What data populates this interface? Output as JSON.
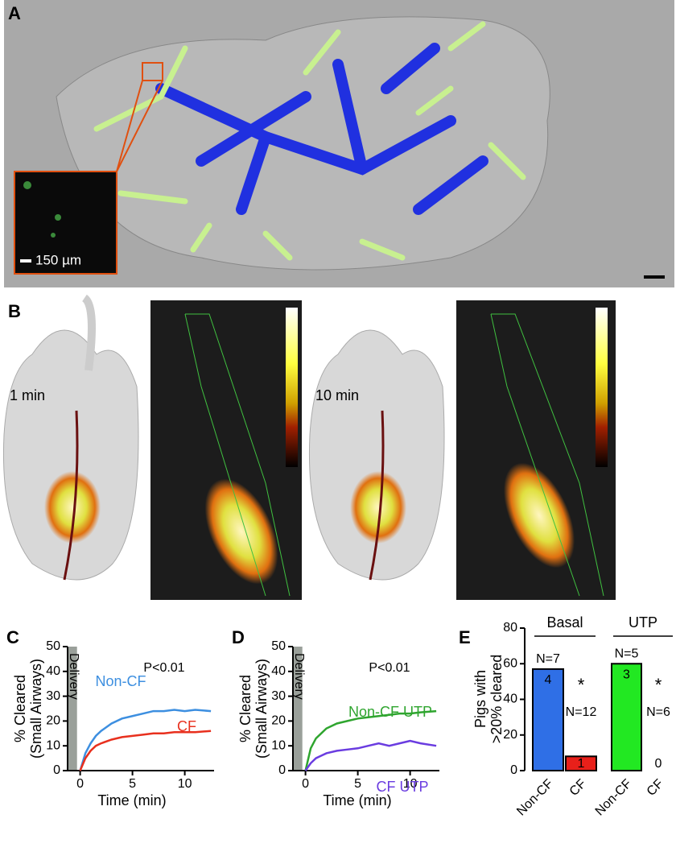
{
  "figure": {
    "panel_labels": [
      "A",
      "B",
      "C",
      "D",
      "E"
    ],
    "inset_scale": "150 µm",
    "time_labels": [
      "1 min",
      "10 min"
    ]
  },
  "chart_data": [
    {
      "type": "line",
      "ylabel": [
        "% Cleared",
        "(Small Airways)"
      ],
      "xlabel": "Time (min)",
      "annotation": "P<0.01",
      "band_label": "Delivery",
      "x": [
        0,
        0.5,
        1,
        1.5,
        2,
        3,
        4,
        5,
        6,
        7,
        8,
        9,
        10,
        11,
        12.5
      ],
      "series": [
        {
          "name": "Non-CF",
          "color": "#3d8fe0",
          "values": [
            0,
            7,
            11,
            14,
            16,
            19,
            21,
            22,
            23,
            24,
            24,
            24.5,
            24,
            24.5,
            24
          ]
        },
        {
          "name": "CF",
          "color": "#e8301e",
          "values": [
            0,
            5,
            8,
            10,
            11,
            12.5,
            13.5,
            14,
            14.5,
            15,
            15,
            15.5,
            15.5,
            15.5,
            16
          ]
        }
      ],
      "xlim": [
        -1.2,
        12.8
      ],
      "ylim": [
        0,
        50
      ],
      "xticks": [
        0,
        5,
        10
      ],
      "yticks": [
        0,
        10,
        20,
        30,
        40,
        50
      ]
    },
    {
      "type": "line",
      "ylabel": [
        "% Cleared",
        "(Small Airways)"
      ],
      "xlabel": "Time (min)",
      "annotation": "P<0.01",
      "band_label": "Delivery",
      "x": [
        0,
        0.5,
        1,
        1.5,
        2,
        3,
        4,
        5,
        6,
        7,
        8,
        9,
        10,
        11,
        12.5
      ],
      "series": [
        {
          "name": "Non-CF UTP",
          "color": "#2fa52f",
          "values": [
            0,
            9,
            13,
            15,
            17,
            19,
            20,
            21,
            21.5,
            22,
            22.5,
            23,
            23,
            23.5,
            24
          ]
        },
        {
          "name": "CF UTP",
          "color": "#6a3ce0",
          "values": [
            0,
            3,
            5,
            6,
            7,
            8,
            8.5,
            9,
            10,
            11,
            10,
            11,
            12,
            11,
            10
          ]
        }
      ],
      "xlim": [
        -1.2,
        12.8
      ],
      "ylim": [
        0,
        50
      ],
      "xticks": [
        0,
        5,
        10
      ],
      "yticks": [
        0,
        10,
        20,
        30,
        40,
        50
      ]
    },
    {
      "type": "bar",
      "ylabel": [
        "Pigs with",
        ">20% cleared"
      ],
      "group_labels": [
        "Basal",
        "UTP"
      ],
      "categories": [
        "Non-CF",
        "CF",
        "Non-CF",
        "CF"
      ],
      "values": [
        57,
        8,
        60,
        0
      ],
      "colors": [
        "#2f6fe6",
        "#e8201a",
        "#22e822",
        "#ffffff"
      ],
      "n_labels": [
        "N=7",
        "N=12",
        "N=5",
        "N=6"
      ],
      "count_labels": [
        "4",
        "1",
        "3",
        "0"
      ],
      "significance_labels": [
        "*",
        "*"
      ],
      "ylim": [
        0,
        80
      ],
      "yticks": [
        0,
        20,
        40,
        60,
        80
      ]
    }
  ]
}
